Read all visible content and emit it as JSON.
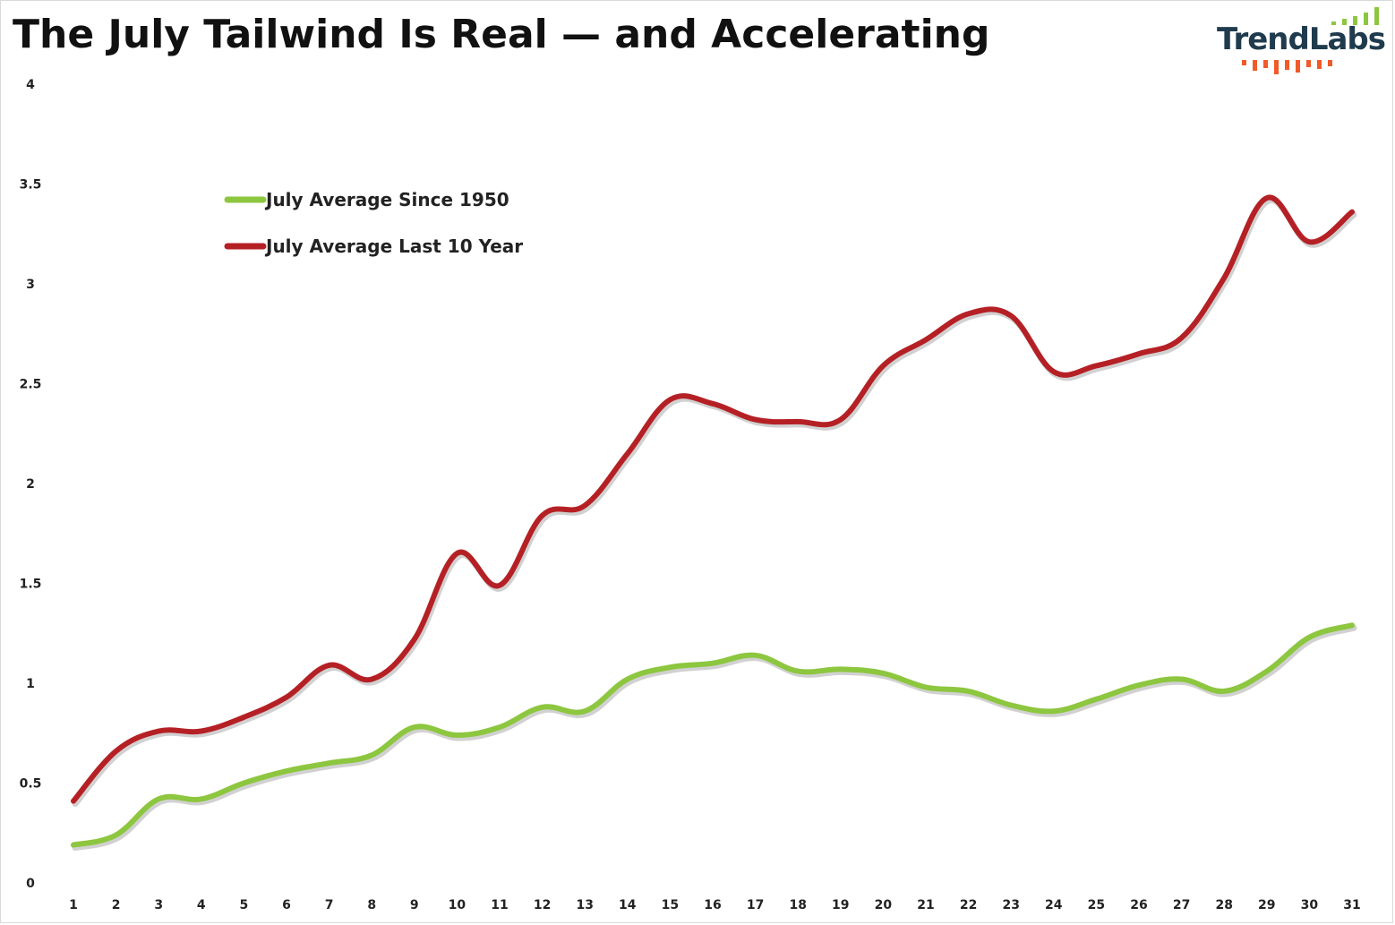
{
  "page": {
    "title": "The July Tailwind Is Real — and Accelerating",
    "logo": {
      "text": "TrendLabs",
      "text_color": "#1f3b4d",
      "bars_top_color": "#8dc63f",
      "bars_bottom_color": "#f15a29"
    }
  },
  "chart_data": {
    "type": "line",
    "title": "The July Tailwind Is Real — and Accelerating",
    "xlabel": "",
    "ylabel": "",
    "x": [
      1,
      2,
      3,
      4,
      5,
      6,
      7,
      8,
      9,
      10,
      11,
      12,
      13,
      14,
      15,
      16,
      17,
      18,
      19,
      20,
      21,
      22,
      23,
      24,
      25,
      26,
      27,
      28,
      29,
      30,
      31
    ],
    "ylim": [
      0,
      4
    ],
    "yticks": [
      "0",
      "0.5",
      "1",
      "1.5",
      "2",
      "2.5",
      "3",
      "3.5",
      "4"
    ],
    "ytick_values": [
      0,
      0.5,
      1,
      1.5,
      2,
      2.5,
      3,
      3.5,
      4
    ],
    "grid": false,
    "legend_position": "top-left",
    "series": [
      {
        "name": "July Average Since 1950",
        "color": "#8dc63f",
        "values": [
          0.19,
          0.24,
          0.42,
          0.42,
          0.5,
          0.56,
          0.6,
          0.64,
          0.78,
          0.74,
          0.78,
          0.88,
          0.86,
          1.02,
          1.08,
          1.1,
          1.14,
          1.06,
          1.07,
          1.05,
          0.98,
          0.96,
          0.89,
          0.86,
          0.92,
          0.99,
          1.02,
          0.96,
          1.06,
          1.23,
          1.29
        ]
      },
      {
        "name": "July Average Last 10 Year",
        "color": "#b52025",
        "values": [
          0.41,
          0.66,
          0.76,
          0.76,
          0.83,
          0.93,
          1.09,
          1.02,
          1.22,
          1.65,
          1.49,
          1.84,
          1.89,
          2.15,
          2.42,
          2.4,
          2.32,
          2.31,
          2.32,
          2.59,
          2.72,
          2.85,
          2.84,
          2.56,
          2.59,
          2.65,
          2.73,
          3.03,
          3.43,
          3.21,
          3.36
        ]
      }
    ]
  }
}
